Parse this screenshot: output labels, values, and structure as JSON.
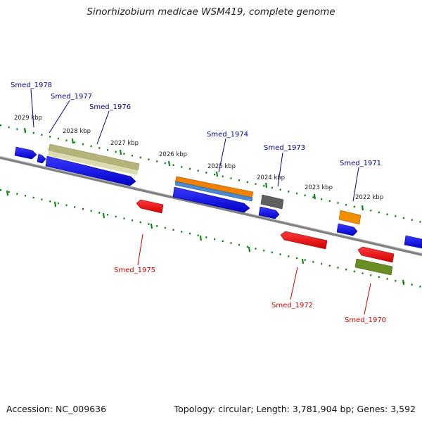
{
  "title": "Sinorhizobium medicae WSM419, complete genome",
  "accession": "Accession: NC_009636",
  "summary": "Topology: circular; Length: 3,781,904 bp; Genes: 3,592",
  "colors": {
    "forward_gene": "#0000ee",
    "reverse_gene": "#ee0000",
    "backbone": "#808080",
    "tick": "#008000",
    "forward_label": "#00008b",
    "reverse_label": "#cc0000"
  },
  "scale_labels": [
    "2029 kbp",
    "2028 kbp",
    "2027 kbp",
    "2026 kbp",
    "2025 kbp",
    "2024 kbp",
    "2023 kbp",
    "2022 kbp"
  ],
  "gene_labels": {
    "smed_1978": "Smed_1978",
    "smed_1977": "Smed_1977",
    "smed_1976": "Smed_1976",
    "smed_1975": "Smed_1975",
    "smed_1974": "Smed_1974",
    "smed_1973": "Smed_1973",
    "smed_1972": "Smed_1972",
    "smed_1971": "Smed_1971",
    "smed_1970": "Smed_1970"
  }
}
